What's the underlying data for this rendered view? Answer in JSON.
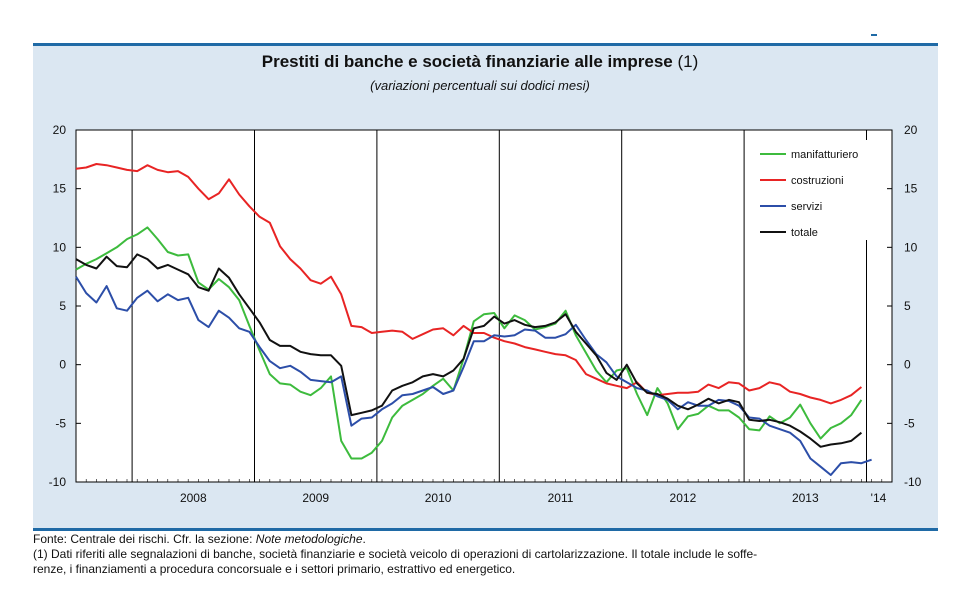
{
  "chart_data": {
    "type": "line",
    "title": "Prestiti di banche e società finanziarie alle imprese",
    "title_suffix": "(1)",
    "subtitle": "(variazioni percentuali sui dodici mesi)",
    "ylim": [
      -10,
      20
    ],
    "yticks": [
      "20",
      "15",
      "10",
      "5",
      "0",
      "-5",
      "-10"
    ],
    "ytick_values": [
      20,
      15,
      10,
      5,
      0,
      -5,
      -10
    ],
    "year_labels": [
      "2008",
      "2009",
      "2010",
      "2011",
      "2012",
      "2013",
      "'14"
    ],
    "x_start": "2007-07",
    "x_end": "2014-03",
    "grid": "vertical lines at year boundaries",
    "legend_position": "top-right",
    "series": [
      {
        "name": "manifatturiero",
        "color": "#3dbb3d",
        "values": [
          8.1,
          8.6,
          9.0,
          9.5,
          10.0,
          10.7,
          11.1,
          11.7,
          10.7,
          9.6,
          9.3,
          9.4,
          7.0,
          6.4,
          7.3,
          6.6,
          5.5,
          3.3,
          1.2,
          -0.8,
          -1.6,
          -1.7,
          -2.3,
          -2.6,
          -2.0,
          -1.0,
          -6.5,
          -8.0,
          -8.0,
          -7.5,
          -6.5,
          -4.5,
          -3.5,
          -3.0,
          -2.5,
          -1.8,
          -1.2,
          -2.2,
          0.5,
          3.7,
          4.3,
          4.4,
          3.1,
          4.2,
          3.8,
          3.0,
          3.2,
          3.5,
          4.6,
          2.5,
          1.0,
          -0.5,
          -1.5,
          -0.5,
          -0.3,
          -2.5,
          -4.3,
          -2.0,
          -3.3,
          -5.5,
          -4.4,
          -4.2,
          -3.5,
          -3.9,
          -3.9,
          -4.5,
          -5.5,
          -5.6,
          -4.4,
          -5.0,
          -4.5,
          -3.4,
          -5.0,
          -6.3,
          -5.4,
          -5.0,
          -4.3,
          -3.0
        ]
      },
      {
        "name": "costruzioni",
        "color": "#e82424",
        "values": [
          16.7,
          16.8,
          17.1,
          17.0,
          16.8,
          16.6,
          16.5,
          17.0,
          16.6,
          16.4,
          16.5,
          16.0,
          15.0,
          14.1,
          14.6,
          15.8,
          14.5,
          13.5,
          12.6,
          12.1,
          10.1,
          9.0,
          8.2,
          7.2,
          6.9,
          7.5,
          6.0,
          3.3,
          3.2,
          2.7,
          2.8,
          2.9,
          2.8,
          2.2,
          2.6,
          3.0,
          3.1,
          2.5,
          3.3,
          2.7,
          2.7,
          2.3,
          2.0,
          1.8,
          1.5,
          1.3,
          1.1,
          0.9,
          0.8,
          0.4,
          -0.8,
          -1.2,
          -1.6,
          -1.8,
          -2.0,
          -1.5,
          -2.4,
          -2.6,
          -2.5,
          -2.4,
          -2.4,
          -2.3,
          -1.7,
          -2.0,
          -1.5,
          -1.6,
          -2.2,
          -2.0,
          -1.5,
          -1.7,
          -2.3,
          -2.5,
          -2.8,
          -3.0,
          -3.3,
          -3.0,
          -2.6,
          -1.9
        ]
      },
      {
        "name": "servizi",
        "color": "#2c4ea8",
        "values": [
          7.5,
          6.1,
          5.3,
          6.7,
          4.8,
          4.6,
          5.7,
          6.3,
          5.4,
          6.0,
          5.5,
          5.7,
          3.8,
          3.2,
          4.6,
          4.0,
          3.1,
          2.8,
          1.5,
          0.3,
          -0.3,
          -0.1,
          -0.6,
          -1.3,
          -1.4,
          -1.5,
          -1.0,
          -5.2,
          -4.6,
          -4.5,
          -3.8,
          -3.3,
          -2.6,
          -2.5,
          -2.2,
          -1.9,
          -2.5,
          -2.2,
          -0.2,
          2.0,
          2.0,
          2.5,
          2.4,
          2.5,
          3.0,
          2.9,
          2.3,
          2.3,
          2.6,
          3.4,
          2.1,
          0.9,
          0.2,
          -1.0,
          -1.5,
          -2.0,
          -2.2,
          -2.7,
          -3.0,
          -3.8,
          -3.2,
          -3.5,
          -3.5,
          -3.0,
          -3.1,
          -3.5,
          -4.5,
          -4.6,
          -5.2,
          -5.5,
          -5.8,
          -6.5,
          -8.0,
          -8.7,
          -9.4,
          -8.4,
          -8.3,
          -8.4,
          -8.1
        ]
      },
      {
        "name": "totale",
        "color": "#111111",
        "values": [
          9.0,
          8.5,
          8.2,
          9.2,
          8.4,
          8.3,
          9.4,
          9.0,
          8.2,
          8.5,
          8.1,
          7.7,
          6.6,
          6.3,
          8.2,
          7.4,
          6.0,
          4.8,
          3.6,
          2.1,
          1.6,
          1.6,
          1.1,
          0.9,
          0.8,
          0.8,
          -0.1,
          -4.3,
          -4.1,
          -3.9,
          -3.5,
          -2.2,
          -1.8,
          -1.5,
          -1.0,
          -0.8,
          -1.0,
          -0.5,
          0.5,
          3.1,
          3.3,
          4.1,
          3.5,
          3.8,
          3.4,
          3.2,
          3.3,
          3.6,
          4.3,
          2.8,
          1.8,
          0.8,
          -0.7,
          -1.3,
          0.0,
          -1.6,
          -2.4,
          -2.5,
          -2.9,
          -3.5,
          -3.8,
          -3.4,
          -2.9,
          -3.3,
          -3.0,
          -3.2,
          -4.7,
          -4.8,
          -4.7,
          -4.9,
          -5.2,
          -5.7,
          -6.3,
          -7.0,
          -6.8,
          -6.7,
          -6.5,
          -5.8
        ]
      }
    ]
  },
  "notes": {
    "source_prefix": "Fonte: Centrale dei rischi. Cfr. la sezione: ",
    "source_ref": "Note metodologiche",
    "source_end": ".",
    "footnote_line1": "(1) Dati riferiti alle segnalazioni di banche, società finanziarie e società veicolo di operazioni di cartolarizzazione. Il totale include le soffe-",
    "footnote_line2": "renze, i finanziamenti a procedura concorsuale e i settori primario, estrattivo ed energetico."
  }
}
